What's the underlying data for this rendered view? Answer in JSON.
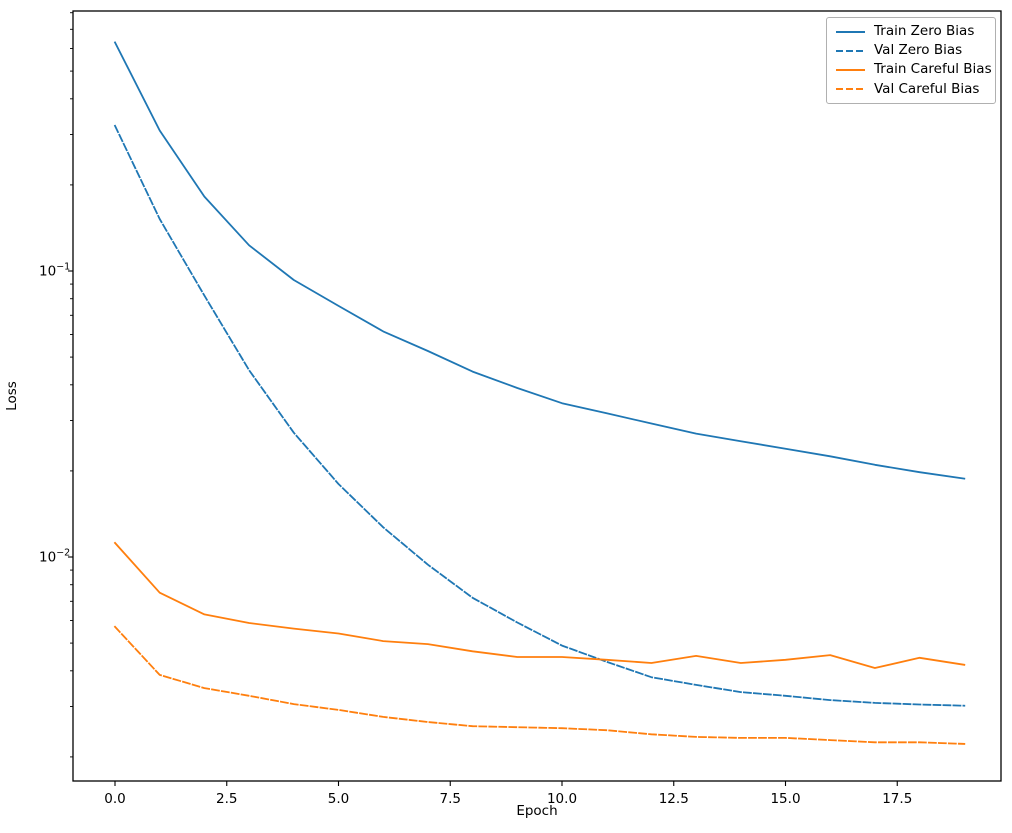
{
  "chart_data": {
    "type": "line",
    "title": "",
    "xlabel": "Epoch",
    "ylabel": "Loss",
    "x": [
      0,
      1,
      2,
      3,
      4,
      5,
      6,
      7,
      8,
      9,
      10,
      11,
      12,
      13,
      14,
      15,
      16,
      17,
      18,
      19
    ],
    "series": [
      {
        "name": "Train Zero Bias",
        "color": "#1f77b4",
        "style": "solid",
        "values": [
          0.63,
          0.31,
          0.182,
          0.123,
          0.093,
          0.0755,
          0.0615,
          0.0525,
          0.0445,
          0.039,
          0.0345,
          0.0318,
          0.0293,
          0.027,
          0.0254,
          0.0239,
          0.0225,
          0.021,
          0.0198,
          0.0188
        ]
      },
      {
        "name": "Val Zero Bias",
        "color": "#1f77b4",
        "style": "dashed",
        "values": [
          0.322,
          0.152,
          0.082,
          0.045,
          0.0272,
          0.018,
          0.0127,
          0.0094,
          0.0072,
          0.0059,
          0.0049,
          0.0043,
          0.0038,
          0.00357,
          0.00337,
          0.00327,
          0.00316,
          0.00309,
          0.00305,
          0.00302
        ]
      },
      {
        "name": "Train Careful Bias",
        "color": "#ff7f0e",
        "style": "solid",
        "values": [
          0.0112,
          0.0075,
          0.0063,
          0.00588,
          0.00562,
          0.0054,
          0.00508,
          0.00496,
          0.00468,
          0.00447,
          0.00447,
          0.00437,
          0.00426,
          0.00451,
          0.00426,
          0.00437,
          0.00454,
          0.00409,
          0.00444,
          0.0042
        ]
      },
      {
        "name": "Val Careful Bias",
        "color": "#ff7f0e",
        "style": "dashed",
        "values": [
          0.0057,
          0.00387,
          0.00348,
          0.00327,
          0.00306,
          0.00292,
          0.00276,
          0.00265,
          0.00256,
          0.00254,
          0.00252,
          0.00248,
          0.0024,
          0.00235,
          0.00233,
          0.00233,
          0.00229,
          0.00225,
          0.00225,
          0.00222
        ]
      }
    ],
    "x_ticks": [
      0.0,
      2.5,
      5.0,
      7.5,
      10.0,
      12.5,
      15.0,
      17.5
    ],
    "x_tick_labels": [
      "0.0",
      "2.5",
      "5.0",
      "7.5",
      "10.0",
      "12.5",
      "15.0",
      "17.5"
    ],
    "y_scale": "log",
    "y_major_ticks": [
      0.1,
      0.01
    ],
    "y_major_tick_labels": [
      "10⁻¹",
      "10⁻²"
    ],
    "xlim": [
      -0.95,
      19.95
    ],
    "ylim": [
      0.00165,
      0.81
    ],
    "grid": false,
    "legend_position": "upper right",
    "legend_labels": [
      "Train Zero Bias",
      "Val Zero Bias",
      "Train Careful Bias",
      "Val Careful Bias"
    ]
  }
}
